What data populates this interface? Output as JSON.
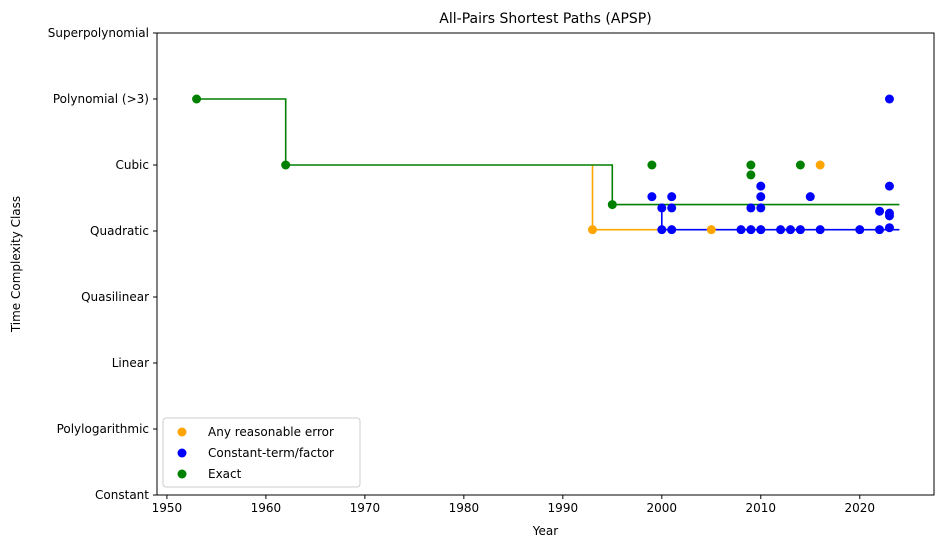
{
  "chart_data": {
    "type": "scatter",
    "title": "All-Pairs Shortest Paths (APSP)",
    "xlabel": "Year",
    "ylabel": "Time Complexity Class",
    "xlim": [
      1949,
      2027.5
    ],
    "ylim": [
      0,
      7
    ],
    "x_ticks": [
      1950,
      1960,
      1970,
      1980,
      1990,
      2000,
      2010,
      2020
    ],
    "y_ticks": [
      {
        "value": 0,
        "label": "Constant"
      },
      {
        "value": 1,
        "label": "Polylogarithmic"
      },
      {
        "value": 2,
        "label": "Linear"
      },
      {
        "value": 3,
        "label": "Quasilinear"
      },
      {
        "value": 4,
        "label": "Quadratic"
      },
      {
        "value": 5,
        "label": "Cubic"
      },
      {
        "value": 6,
        "label": "Polynomial (>3)"
      },
      {
        "value": 7,
        "label": "Superpolynomial"
      }
    ],
    "legend_position": "lower-left",
    "series": [
      {
        "name": "Any reasonable error",
        "color": "#ffa500",
        "points": [
          [
            1993,
            4.02
          ],
          [
            2005,
            4.02
          ],
          [
            2016,
            5.0
          ]
        ],
        "step_line": [
          [
            1993,
            5.0
          ],
          [
            1993,
            4.02
          ],
          [
            2000,
            4.02
          ]
        ]
      },
      {
        "name": "Constant-term/factor",
        "color": "#0000ff",
        "points": [
          [
            1999,
            4.52
          ],
          [
            2000,
            4.35
          ],
          [
            2000,
            4.02
          ],
          [
            2001,
            4.52
          ],
          [
            2001,
            4.35
          ],
          [
            2001,
            4.02
          ],
          [
            2008,
            4.02
          ],
          [
            2009,
            4.35
          ],
          [
            2009,
            4.02
          ],
          [
            2010,
            4.68
          ],
          [
            2010,
            4.52
          ],
          [
            2010,
            4.35
          ],
          [
            2010,
            4.02
          ],
          [
            2012,
            4.02
          ],
          [
            2013,
            4.02
          ],
          [
            2014,
            4.02
          ],
          [
            2015,
            4.52
          ],
          [
            2016,
            4.02
          ],
          [
            2020,
            4.02
          ],
          [
            2022,
            4.3
          ],
          [
            2022,
            4.02
          ],
          [
            2023,
            6.0
          ],
          [
            2023,
            4.68
          ],
          [
            2023,
            4.27
          ],
          [
            2023,
            4.23
          ],
          [
            2023,
            4.05
          ]
        ],
        "step_line": [
          [
            2000,
            4.4
          ],
          [
            2000,
            4.02
          ],
          [
            2024,
            4.02
          ]
        ]
      },
      {
        "name": "Exact",
        "color": "#008000",
        "points": [
          [
            1953,
            6.0
          ],
          [
            1962,
            5.0
          ],
          [
            1995,
            4.4
          ],
          [
            1999,
            5.0
          ],
          [
            2009,
            5.0
          ],
          [
            2009,
            4.85
          ],
          [
            2014,
            5.0
          ]
        ],
        "step_line": [
          [
            1953,
            6.0
          ],
          [
            1962,
            6.0
          ],
          [
            1962,
            5.0
          ],
          [
            1995,
            5.0
          ],
          [
            1995,
            4.4
          ],
          [
            2024,
            4.4
          ]
        ]
      }
    ]
  }
}
